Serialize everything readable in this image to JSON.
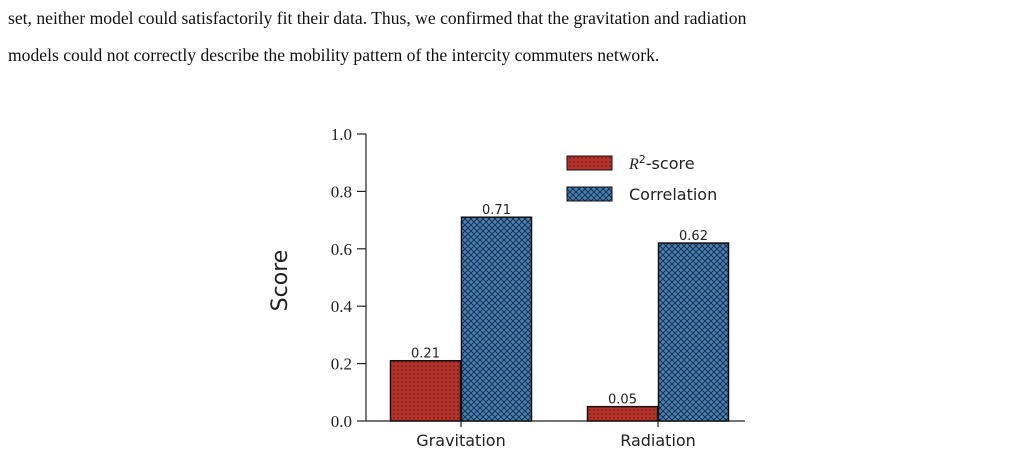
{
  "paragraph": {
    "line1": "set, neither model could satisfactorily fit their data. Thus, we confirmed that the gravitation and radiation",
    "line2": "models could not correctly describe the mobility pattern of the intercity commuters network."
  },
  "chart_data": {
    "type": "bar",
    "categories": [
      "Gravitation",
      "Radiation"
    ],
    "series": [
      {
        "name": "R2-score",
        "legend_base": "R",
        "legend_sup": "2",
        "legend_suffix": "-score",
        "values": [
          0.21,
          0.05
        ],
        "color": "#b5322a",
        "pattern": "dots"
      },
      {
        "name": "Correlation",
        "values": [
          0.71,
          0.62
        ],
        "color": "#3a6fa3",
        "pattern": "crosshatch"
      }
    ],
    "data_labels": [
      [
        "0.21",
        "0.05"
      ],
      [
        "0.71",
        "0.62"
      ]
    ],
    "ylabel": "Score",
    "xlabel": "",
    "ylim": [
      0,
      1.0
    ],
    "yticks": [
      "0.0",
      "0.2",
      "0.4",
      "0.6",
      "0.8",
      "1.0"
    ],
    "grid": false,
    "legend_position": "top-right"
  }
}
